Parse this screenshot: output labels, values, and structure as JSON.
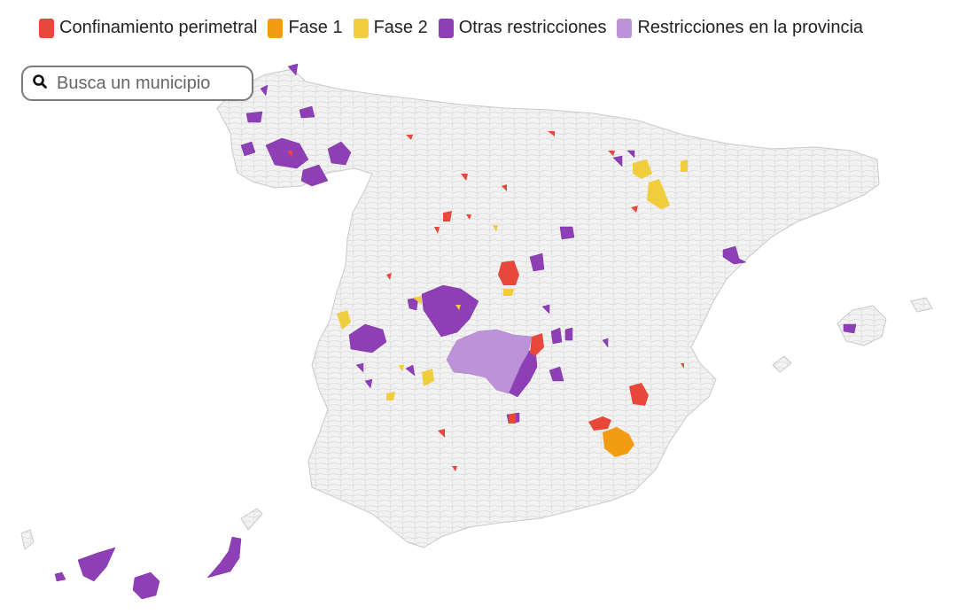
{
  "legend": {
    "items": [
      {
        "label": "Confinamiento perimetral",
        "color": "#e8483a"
      },
      {
        "label": "Fase 1",
        "color": "#f39c12"
      },
      {
        "label": "Fase 2",
        "color": "#f0cd3c"
      },
      {
        "label": "Otras restricciones",
        "color": "#8e3fb5"
      },
      {
        "label": "Restricciones en la provincia",
        "color": "#bd92d8"
      }
    ]
  },
  "search": {
    "placeholder": "Busca un municipio",
    "icon": "search-icon"
  },
  "map": {
    "base_color": "#f2f2f2",
    "border_color": "#d6d6d6"
  }
}
